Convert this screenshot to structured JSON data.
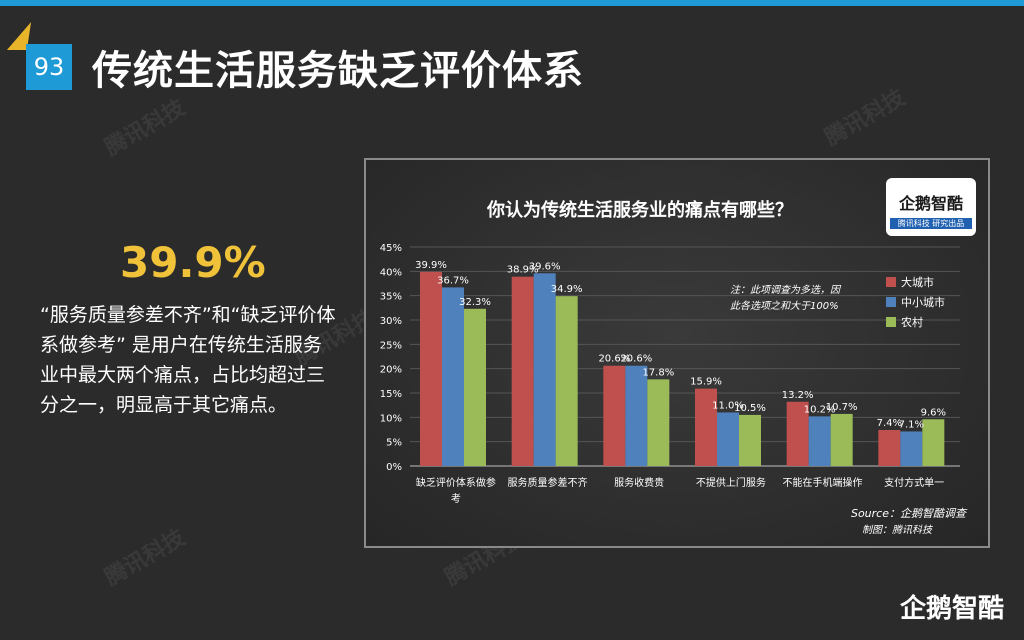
{
  "page": {
    "number": "93",
    "title": "传统生活服务缺乏评价体系",
    "big_stat": "39.9%",
    "description": "“服务质量参差不齐”和“缺乏评价体系做参考” 是用户在传统生活服务业中最大两个痛点，占比均超过三分之一，明显高于其它痛点。",
    "watermark": "腾讯科技",
    "footer_logo": "企鹅智酷"
  },
  "colors": {
    "accent_blue": "#1e9ad6",
    "accent_yellow": "#f0c23a",
    "series_big_city": "#c0504d",
    "series_small_city": "#4f81bd",
    "series_rural": "#9bbb59"
  },
  "chart_logo": {
    "main": "企鹅智酷",
    "sub": "腾讯科技 研究出品"
  },
  "chart_data": {
    "type": "bar",
    "title": "你认为传统生活服务业的痛点有哪些？",
    "categories": [
      "缺乏评价体系做参考",
      "服务质量参差不齐",
      "服务收费贵",
      "不提供上门服务",
      "不能在手机端操作",
      "支付方式单一"
    ],
    "series": [
      {
        "name": "大城市",
        "values": [
          39.9,
          38.9,
          20.6,
          15.9,
          13.2,
          7.4
        ],
        "color": "#c0504d"
      },
      {
        "name": "中小城市",
        "values": [
          36.7,
          39.6,
          20.6,
          11.0,
          10.2,
          7.1
        ],
        "color": "#4f81bd"
      },
      {
        "name": "农村",
        "values": [
          32.3,
          34.9,
          17.8,
          10.5,
          10.7,
          9.6
        ],
        "color": "#9bbb59"
      }
    ],
    "ylim": [
      0,
      45
    ],
    "yticks": [
      "0%",
      "5%",
      "10%",
      "15%",
      "20%",
      "25%",
      "30%",
      "35%",
      "40%",
      "45%"
    ],
    "note_line1": "注：此项调查为多选，因",
    "note_line2": "此各选项之和大于100%",
    "source": "Source：企鹅智酷调查",
    "credit": "制图：腾讯科技",
    "grid": true,
    "legend": "right"
  }
}
